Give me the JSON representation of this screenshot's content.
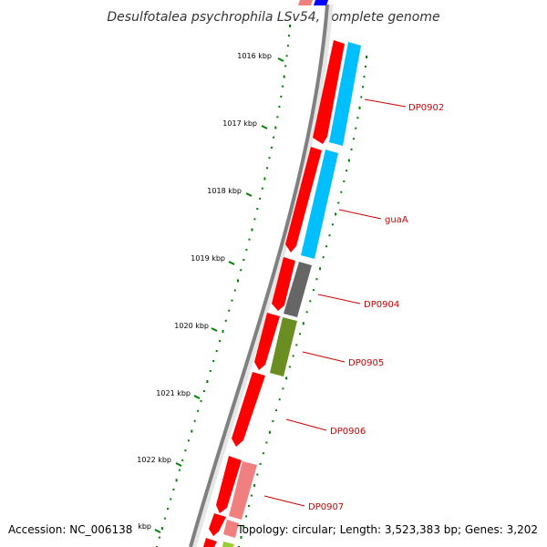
{
  "title": "Desulfotalea psychrophila LSv54, complete genome",
  "ticks": [
    {
      "label": "1016 kbp"
    },
    {
      "label": "1017 kbp"
    },
    {
      "label": "1018 kbp"
    },
    {
      "label": "1019 kbp"
    },
    {
      "label": "1020 kbp"
    },
    {
      "label": "1021 kbp"
    },
    {
      "label": "1022 kbp"
    },
    {
      "label": "kbp"
    }
  ],
  "genes": [
    {
      "label": "DP0902"
    },
    {
      "label": "guaA"
    },
    {
      "label": "DP0904"
    },
    {
      "label": "DP0905"
    },
    {
      "label": "DP0906"
    },
    {
      "label": "DP0907"
    }
  ],
  "colors": {
    "cds": "#ff0000",
    "cyan": "#00bfff",
    "gray": "#666666",
    "olive": "#6b8e23",
    "pink": "#f08080",
    "blue": "#0000ff",
    "lightgreen": "#9acd32",
    "backbone": "#808080",
    "ticks": "#008000",
    "labels": "#cc0000"
  },
  "footer": {
    "accession": "Accession: NC_006138",
    "topology": "Topology: circular; Length: 3,523,383 bp; Genes: 3,202"
  }
}
